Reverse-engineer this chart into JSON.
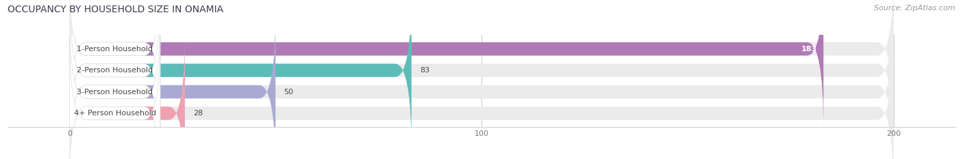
{
  "title": "OCCUPANCY BY HOUSEHOLD SIZE IN ONAMIA",
  "source": "Source: ZipAtlas.com",
  "categories": [
    "1-Person Household",
    "2-Person Household",
    "3-Person Household",
    "4+ Person Household"
  ],
  "values": [
    183,
    83,
    50,
    28
  ],
  "bar_colors": [
    "#b07ab5",
    "#5bbcb8",
    "#a9a9d4",
    "#f0a0b0"
  ],
  "bar_label_colors": [
    "white",
    "black",
    "black",
    "black"
  ],
  "xlim": [
    -15,
    215
  ],
  "xdata_min": 0,
  "xdata_max": 200,
  "xticks": [
    0,
    100,
    200
  ],
  "background_color": "#ffffff",
  "bar_bg_color": "#ebebeb",
  "label_bg_color": "#ffffff",
  "title_fontsize": 10,
  "source_fontsize": 8,
  "label_fontsize": 8,
  "value_fontsize": 8,
  "bar_height": 0.62
}
